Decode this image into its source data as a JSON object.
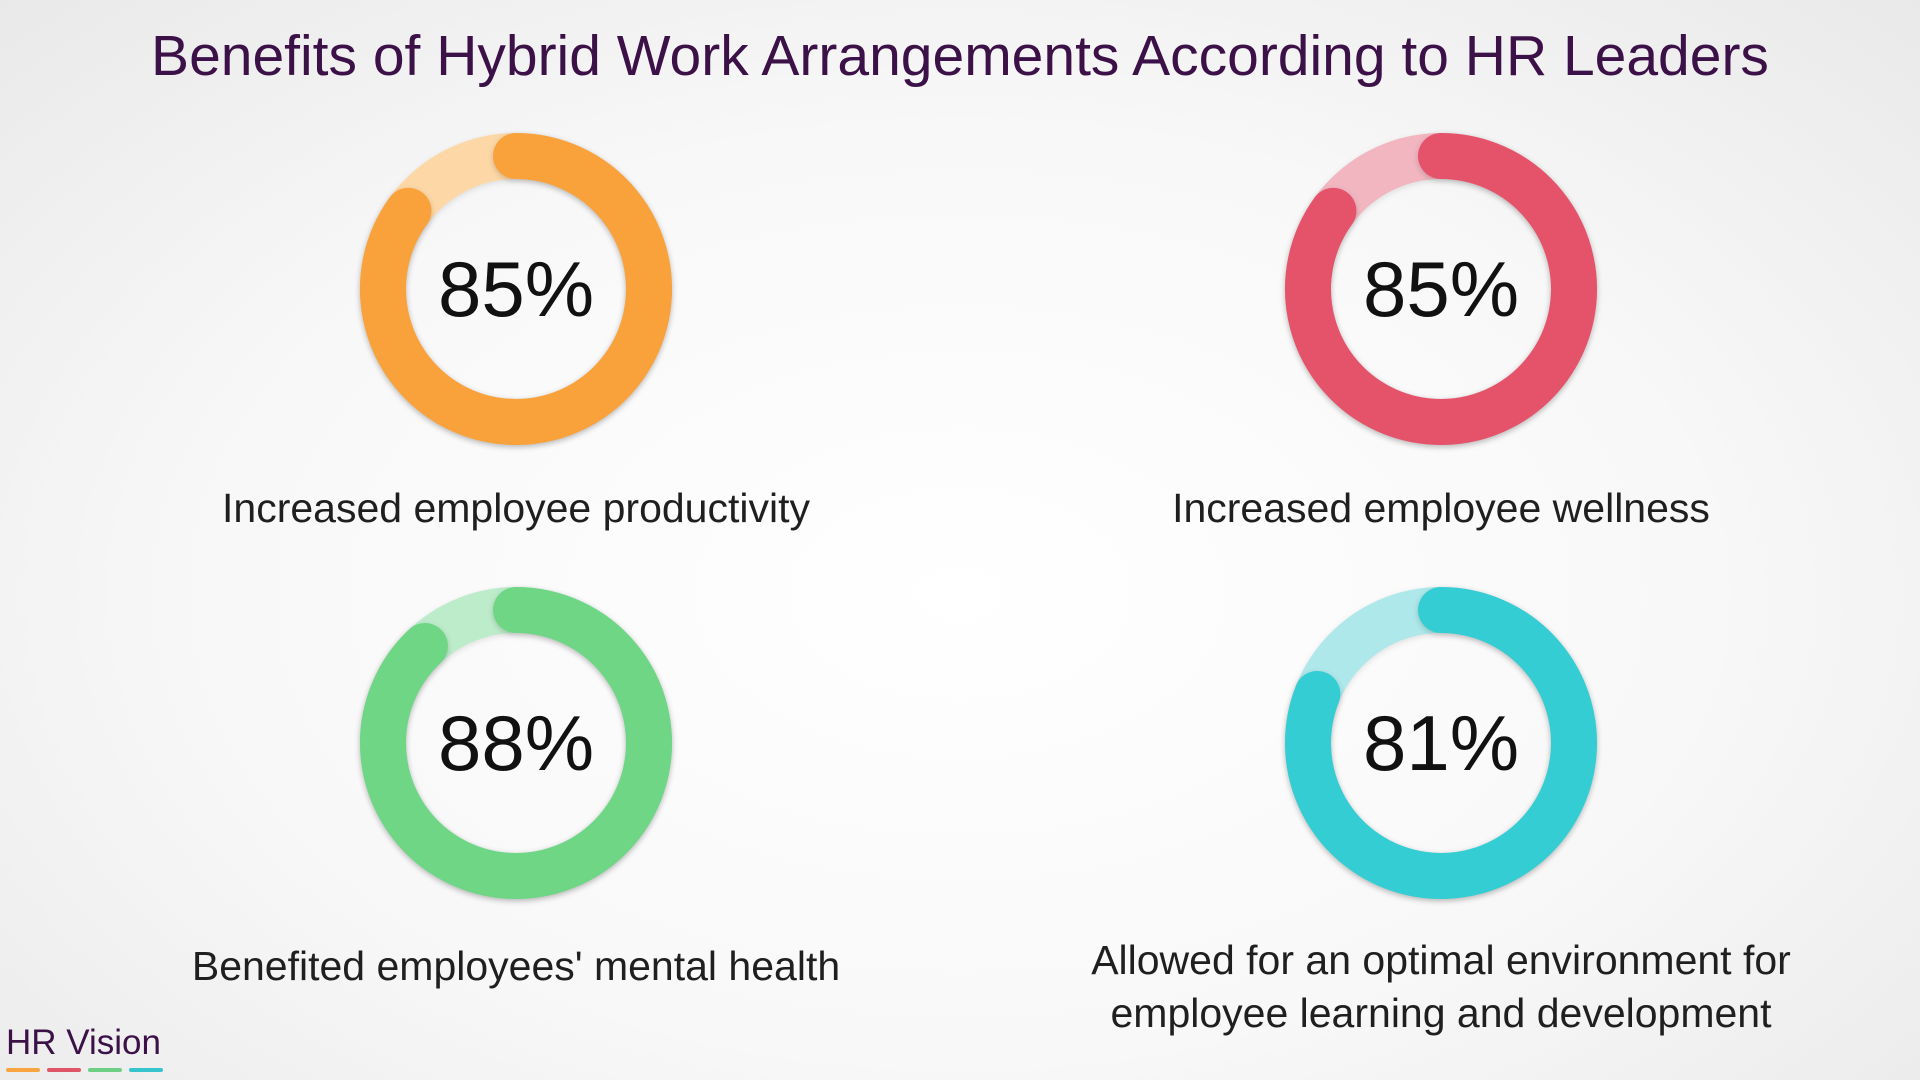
{
  "title": "Benefits of Hybrid Work Arrangements According to HR Leaders",
  "brand": {
    "name": "HR Vision",
    "stripe_colors": [
      "#f7a441",
      "#e05468",
      "#6ccf84",
      "#37c4cc"
    ]
  },
  "chart_data": {
    "type": "pie",
    "style": "donut",
    "title": "Benefits of Hybrid Work Arrangements According to HR Leaders",
    "unit": "%",
    "items": [
      {
        "label": "Increased employee productivity",
        "value": 85,
        "display": "85%",
        "color": "#f9a13a",
        "track_color": "#fdd8a6"
      },
      {
        "label": "Increased employee wellness",
        "value": 85,
        "display": "85%",
        "color": "#e5536b",
        "track_color": "#f2b6c1"
      },
      {
        "label": "Benefited employees' mental health",
        "value": 88,
        "display": "88%",
        "color": "#6fd686",
        "track_color": "#bdeccb"
      },
      {
        "label": "Allowed for an optimal environment for employee learning and development",
        "value": 81,
        "display": "81%",
        "color": "#33cdd3",
        "track_color": "#aee8ea"
      }
    ]
  }
}
